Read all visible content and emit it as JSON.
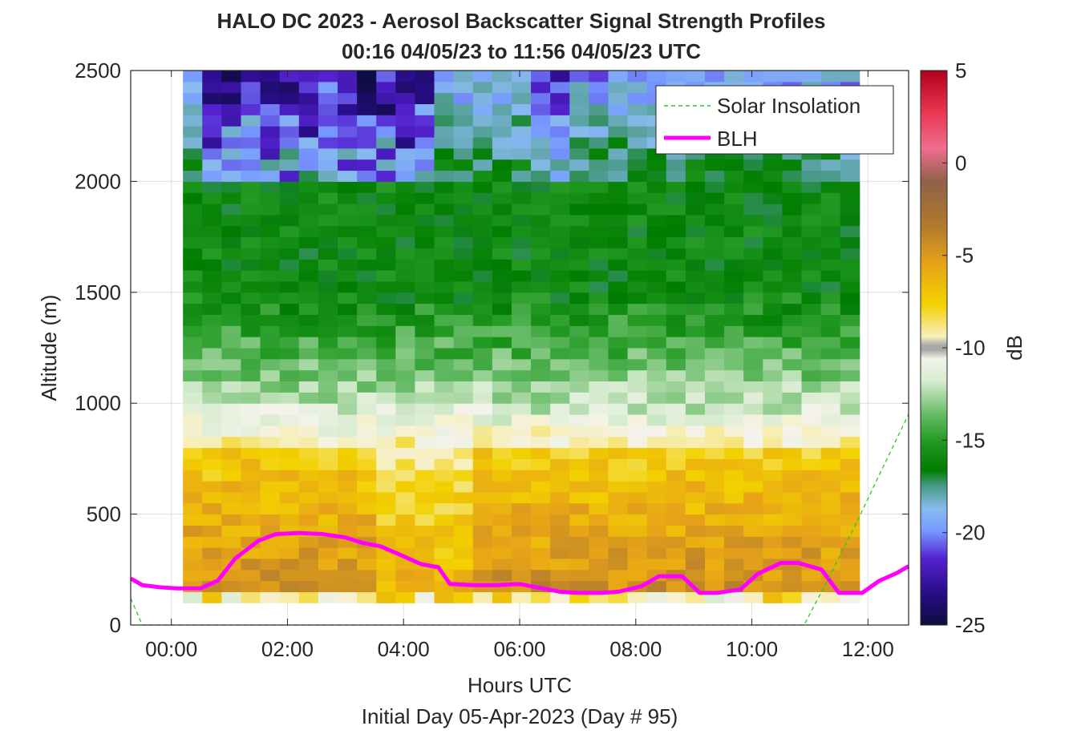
{
  "chart_data": {
    "type": "heatmap",
    "title": "HALO DC 2023 - Aerosol Backscatter Signal Strength Profiles",
    "subtitle": "00:16 04/05/23 to 11:56 04/05/23  UTC",
    "xlabel": "Hours UTC",
    "xlabel_sub": "Initial Day 05-Apr-2023 (Day # 95)",
    "ylabel": "Altitude (m)",
    "colorbar_label": "dB",
    "xlim": [
      -0.7,
      12.7
    ],
    "ylim": [
      0,
      2500
    ],
    "x_ticks": [
      0,
      2,
      4,
      6,
      8,
      10,
      12
    ],
    "x_tick_labels": [
      "00:00",
      "02:00",
      "04:00",
      "06:00",
      "08:00",
      "10:00",
      "12:00"
    ],
    "y_ticks": [
      0,
      500,
      1000,
      1500,
      2000,
      2500
    ],
    "y_tick_labels": [
      "0",
      "500",
      "1000",
      "1500",
      "2000",
      "2500"
    ],
    "clim": [
      -25,
      5
    ],
    "cbar_ticks": [
      5,
      0,
      -5,
      -10,
      -15,
      -20,
      -25
    ],
    "cbar_tick_labels": [
      "5",
      "0",
      "-5",
      "-10",
      "-15",
      "-20",
      "-25"
    ],
    "grid": true,
    "legend": {
      "position": "top-right",
      "entries": [
        {
          "label": "Solar Insolation",
          "color": "#22cc22",
          "style": "dashed"
        },
        {
          "label": "BLH",
          "color": "#ff00ff",
          "style": "solid"
        }
      ]
    },
    "heatmap": {
      "x_start": 0.2,
      "x_step": 0.333,
      "y_start": 100,
      "y_step": 50,
      "columns": 35,
      "rows": 48
    },
    "series": [
      {
        "name": "BLH",
        "color": "#ff00ff",
        "x": [
          -0.7,
          -0.5,
          -0.2,
          0.1,
          0.5,
          0.8,
          1.1,
          1.5,
          1.8,
          2.2,
          2.6,
          3.0,
          3.3,
          3.6,
          4.0,
          4.3,
          4.6,
          4.8,
          5.2,
          5.6,
          6.0,
          6.3,
          6.7,
          7.0,
          7.4,
          7.7,
          8.1,
          8.4,
          8.8,
          9.1,
          9.4,
          9.8,
          10.1,
          10.5,
          10.8,
          11.2,
          11.5,
          11.9,
          12.2,
          12.5,
          12.7
        ],
        "y": [
          210,
          180,
          170,
          165,
          165,
          200,
          300,
          380,
          410,
          415,
          410,
          395,
          370,
          355,
          310,
          275,
          260,
          185,
          180,
          180,
          185,
          170,
          150,
          145,
          145,
          150,
          175,
          220,
          220,
          145,
          145,
          160,
          230,
          280,
          280,
          250,
          145,
          145,
          200,
          235,
          265
        ]
      },
      {
        "name": "Solar Insolation",
        "color": "#22cc22",
        "x": [
          -0.7,
          -0.5,
          0.5,
          3.0,
          6.0,
          9.0,
          10.9,
          11.3,
          11.8,
          12.2,
          12.7
        ],
        "y": [
          120,
          0,
          0,
          0,
          0,
          0,
          0,
          200,
          460,
          680,
          950
        ]
      }
    ]
  }
}
